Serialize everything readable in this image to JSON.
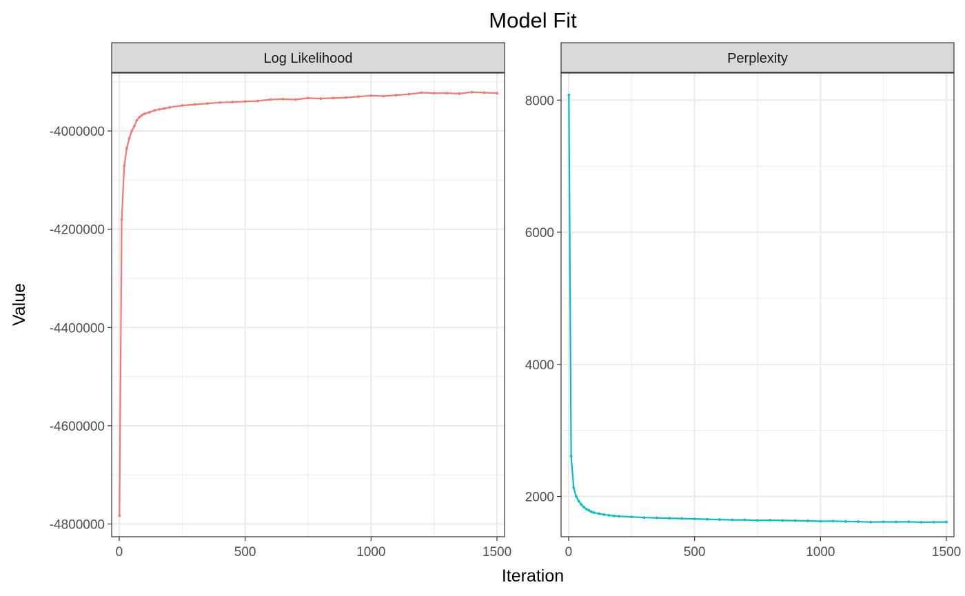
{
  "chart_data": {
    "type": "line",
    "title": "Model Fit",
    "xlabel": "Iteration",
    "ylabel": "Value",
    "grid": true,
    "panels": [
      {
        "name": "Log Likelihood",
        "color": "#F8766D",
        "xlim": [
          -30,
          1530
        ],
        "ylim": [
          -4826000,
          -3882000
        ],
        "x_ticks": [
          0,
          500,
          1000,
          1500
        ],
        "y_ticks": [
          -4800000,
          -4600000,
          -4400000,
          -4200000,
          -4000000
        ],
        "y_tick_labels": [
          "-4800000",
          "-4600000",
          "-4400000",
          "-4200000",
          "-4000000"
        ],
        "x": [
          1,
          10,
          20,
          30,
          40,
          50,
          60,
          70,
          80,
          90,
          100,
          120,
          140,
          160,
          180,
          200,
          250,
          300,
          350,
          400,
          450,
          500,
          550,
          600,
          650,
          700,
          750,
          800,
          850,
          900,
          950,
          1000,
          1050,
          1100,
          1150,
          1200,
          1250,
          1300,
          1350,
          1400,
          1450,
          1500
        ],
        "values": [
          -4783000,
          -4180000,
          -4071000,
          -4035000,
          -4015000,
          -4000000,
          -3990000,
          -3978000,
          -3972000,
          -3968000,
          -3965000,
          -3962000,
          -3958000,
          -3956000,
          -3954000,
          -3952000,
          -3948000,
          -3946000,
          -3944000,
          -3942000,
          -3941000,
          -3940000,
          -3939000,
          -3936000,
          -3935000,
          -3936000,
          -3933000,
          -3934000,
          -3933000,
          -3932000,
          -3930000,
          -3928000,
          -3929000,
          -3927000,
          -3925000,
          -3922000,
          -3923000,
          -3923000,
          -3924000,
          -3921000,
          -3922000,
          -3923000
        ]
      },
      {
        "name": "Perplexity",
        "color": "#00BFC4",
        "xlim": [
          -30,
          1530
        ],
        "ylim": [
          1390,
          8410
        ],
        "x_ticks": [
          0,
          500,
          1000,
          1500
        ],
        "y_ticks": [
          2000,
          4000,
          6000,
          8000
        ],
        "y_tick_labels": [
          "2000",
          "4000",
          "6000",
          "8000"
        ],
        "x": [
          1,
          10,
          20,
          30,
          40,
          50,
          60,
          70,
          80,
          90,
          100,
          120,
          140,
          160,
          180,
          200,
          250,
          300,
          350,
          400,
          450,
          500,
          550,
          600,
          650,
          700,
          750,
          800,
          850,
          900,
          950,
          1000,
          1050,
          1100,
          1150,
          1200,
          1250,
          1300,
          1350,
          1400,
          1450,
          1500
        ],
        "values": [
          8080,
          2610,
          2130,
          2000,
          1930,
          1880,
          1840,
          1810,
          1790,
          1770,
          1755,
          1740,
          1725,
          1715,
          1705,
          1700,
          1690,
          1680,
          1675,
          1670,
          1665,
          1660,
          1655,
          1650,
          1645,
          1645,
          1638,
          1640,
          1636,
          1634,
          1630,
          1625,
          1627,
          1622,
          1618,
          1612,
          1615,
          1614,
          1616,
          1610,
          1612,
          1613
        ]
      }
    ]
  }
}
